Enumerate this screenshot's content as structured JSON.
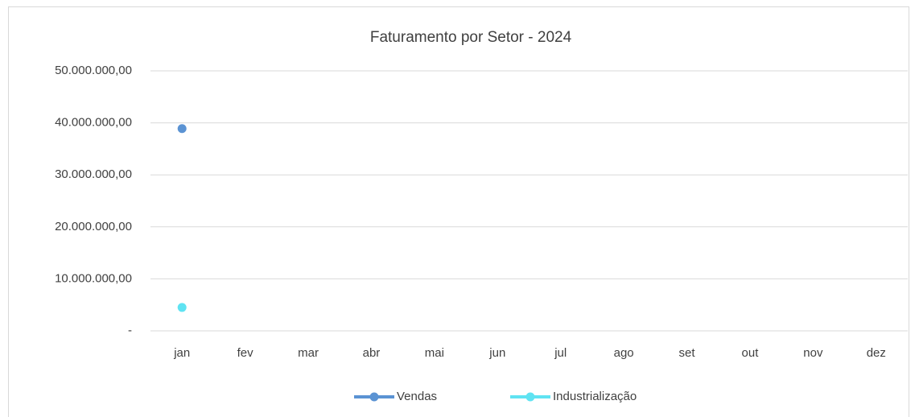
{
  "chart_data": {
    "type": "line",
    "title": "Faturamento por Setor - 2024",
    "categories": [
      "jan",
      "fev",
      "mar",
      "abr",
      "mai",
      "jun",
      "jul",
      "ago",
      "set",
      "out",
      "nov",
      "dez"
    ],
    "series": [
      {
        "name": "Vendas",
        "color": "#5b93d3",
        "values": [
          38900000,
          null,
          null,
          null,
          null,
          null,
          null,
          null,
          null,
          null,
          null,
          null
        ]
      },
      {
        "name": "Industrialização",
        "color": "#5fe3f2",
        "values": [
          4500000,
          null,
          null,
          null,
          null,
          null,
          null,
          null,
          null,
          null,
          null,
          null
        ]
      }
    ],
    "ylim": [
      0,
      50000000
    ],
    "yticks": [
      {
        "value": 0,
        "label": "-"
      },
      {
        "value": 10000000,
        "label": "10.000.000,00"
      },
      {
        "value": 20000000,
        "label": "20.000.000,00"
      },
      {
        "value": 30000000,
        "label": "30.000.000,00"
      },
      {
        "value": 40000000,
        "label": "40.000.000,00"
      },
      {
        "value": 50000000,
        "label": "50.000.000,00"
      }
    ],
    "grid": true,
    "legend": "bottom"
  }
}
